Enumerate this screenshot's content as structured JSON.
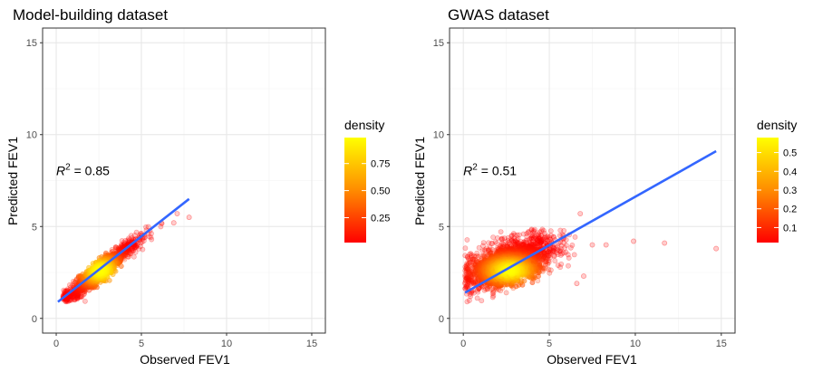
{
  "chart_data": [
    {
      "type": "scatter",
      "title": "Model-building dataset",
      "xlabel": "Observed FEV1",
      "ylabel": "Predicted FEV1",
      "xlim": [
        -0.8,
        15.8
      ],
      "ylim": [
        -0.8,
        15.8
      ],
      "xticks": [
        "0",
        "5",
        "10",
        "15"
      ],
      "yticks": [
        "0",
        "5",
        "10",
        "15"
      ],
      "grid": true,
      "annotation": {
        "prefix": "R",
        "superscript": "2",
        "text": " = 0.85",
        "x": 0,
        "y": 7.8
      },
      "cloud": {
        "x_range": [
          0.4,
          6.8
        ],
        "slope": 0.74,
        "intercept": 0.68,
        "spread": 0.38,
        "center": [
          2.6,
          2.6
        ],
        "max_pred": 5.2
      },
      "outliers": [
        {
          "x": 7.1,
          "y": 5.7
        },
        {
          "x": 7.8,
          "y": 5.5
        },
        {
          "x": 6.9,
          "y": 5.2
        }
      ],
      "fit_line": {
        "x": [
          0.1,
          7.8
        ],
        "y": [
          0.9,
          6.5
        ],
        "color": "#3366FF"
      },
      "legend": {
        "title": "density",
        "position": "right",
        "ticks": [
          "0.25",
          "0.50",
          "0.75"
        ],
        "tick_values": [
          0.25,
          0.5,
          0.75
        ],
        "range": [
          0.02,
          0.99
        ]
      }
    },
    {
      "type": "scatter",
      "title": "GWAS dataset",
      "xlabel": "Observed FEV1",
      "ylabel": "Predicted FEV1",
      "xlim": [
        -0.8,
        15.8
      ],
      "ylim": [
        -0.8,
        15.8
      ],
      "xticks": [
        "0",
        "5",
        "10",
        "15"
      ],
      "yticks": [
        "0",
        "5",
        "10",
        "15"
      ],
      "grid": true,
      "annotation": {
        "prefix": "R",
        "superscript": "2",
        "text": " = 0.51",
        "x": 0,
        "y": 7.8
      },
      "cloud": {
        "x_range": [
          0.1,
          6.5
        ],
        "slope": 0.3,
        "intercept": 2.2,
        "spread": 0.75,
        "center": [
          2.7,
          2.6
        ],
        "max_pred": 4.9
      },
      "outliers": [
        {
          "x": 6.8,
          "y": 5.7
        },
        {
          "x": 7.5,
          "y": 4.0
        },
        {
          "x": 8.3,
          "y": 4.0
        },
        {
          "x": 9.9,
          "y": 4.2
        },
        {
          "x": 11.7,
          "y": 4.1
        },
        {
          "x": 14.7,
          "y": 3.8
        },
        {
          "x": 7.0,
          "y": 2.3
        },
        {
          "x": 6.6,
          "y": 1.9
        }
      ],
      "fit_line": {
        "x": [
          0.1,
          14.7
        ],
        "y": [
          1.4,
          9.1
        ],
        "color": "#3366FF"
      },
      "legend": {
        "title": "density",
        "position": "right",
        "ticks": [
          "0.1",
          "0.2",
          "0.3",
          "0.4",
          "0.5"
        ],
        "tick_values": [
          0.1,
          0.2,
          0.3,
          0.4,
          0.5
        ],
        "range": [
          0.02,
          0.58
        ]
      }
    }
  ]
}
